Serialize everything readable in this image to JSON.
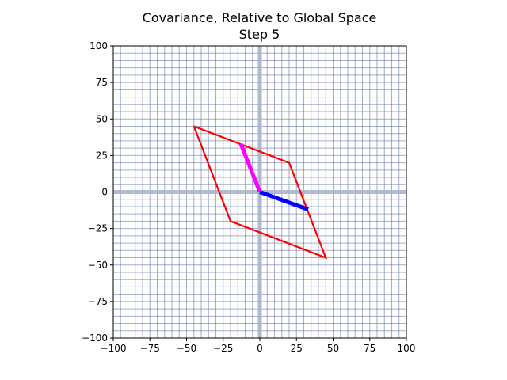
{
  "chart_data": {
    "type": "line",
    "title": "Covariance, Relative to Global Space",
    "subtitle": "Step 5",
    "xlabel": "",
    "ylabel": "",
    "xlim": [
      -100,
      100
    ],
    "ylim": [
      -100,
      100
    ],
    "xticks": [
      -100,
      -75,
      -50,
      -25,
      0,
      25,
      50,
      75,
      100
    ],
    "yticks": [
      -100,
      -75,
      -50,
      -25,
      0,
      25,
      50,
      75,
      100
    ],
    "xtick_labels": [
      "−100",
      "−75",
      "−50",
      "−25",
      "0",
      "25",
      "50",
      "75",
      "100"
    ],
    "ytick_labels": [
      "−100",
      "−75",
      "−50",
      "−25",
      "0",
      "25",
      "50",
      "75",
      "100"
    ],
    "grid": true,
    "grid_step": 5,
    "grid_color": "#6677aa",
    "axis_line_color": "#a8b4d0",
    "series": [
      {
        "type": "polygon",
        "color": "#ff0000",
        "points": [
          [
            -45,
            45
          ],
          [
            20,
            20
          ],
          [
            45,
            -45
          ],
          [
            -20,
            -20
          ],
          [
            -45,
            45
          ]
        ]
      },
      {
        "type": "vector",
        "color": "#ff00ff",
        "points": [
          [
            0,
            0
          ],
          [
            -13,
            33
          ]
        ]
      },
      {
        "type": "vector",
        "color": "#0000ff",
        "points": [
          [
            0,
            0
          ],
          [
            33,
            -12
          ]
        ]
      }
    ]
  }
}
